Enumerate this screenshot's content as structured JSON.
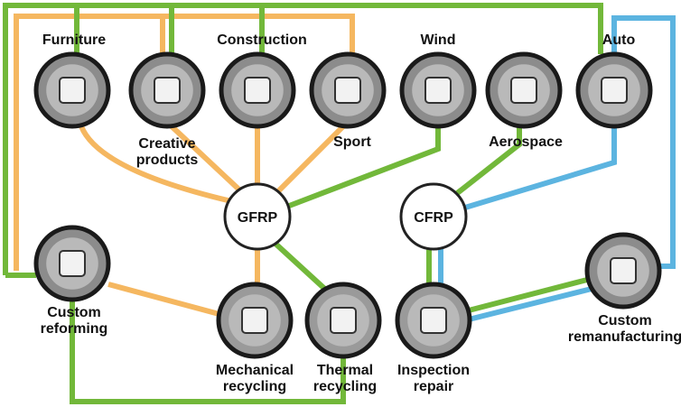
{
  "nodes": [
    {
      "label": [
        "Furniture"
      ]
    },
    {
      "label": [
        "Creative",
        "products"
      ]
    },
    {
      "label": [
        "Construction"
      ]
    },
    {
      "label": [
        "Sport"
      ]
    },
    {
      "label": [
        "Wind"
      ]
    },
    {
      "label": [
        "Aerospace"
      ]
    },
    {
      "label": [
        "Auto"
      ]
    },
    {
      "label": [
        "GFRP"
      ]
    },
    {
      "label": [
        "CFRP"
      ]
    },
    {
      "label": [
        "Custom",
        "reforming"
      ]
    },
    {
      "label": [
        "Custom",
        "remanufacturing"
      ]
    },
    {
      "label": [
        "Mechanical",
        "recycling"
      ]
    },
    {
      "label": [
        "Thermal",
        "recycling"
      ]
    },
    {
      "label": [
        "Inspection",
        "repair"
      ]
    }
  ]
}
